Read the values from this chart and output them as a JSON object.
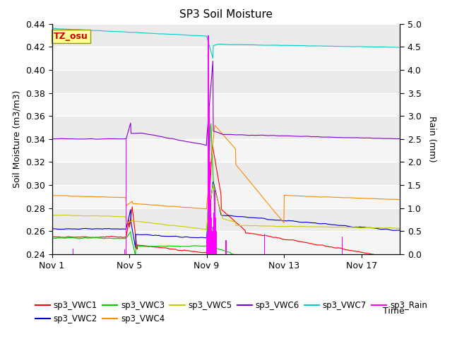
{
  "title": "SP3 Soil Moisture",
  "ylabel_left": "Soil Moisture (m3/m3)",
  "ylabel_right": "Rain (mm)",
  "xlabel": "Time",
  "ylim_left": [
    0.24,
    0.44
  ],
  "ylim_right": [
    0.0,
    5.0
  ],
  "colors": {
    "VWC1": "#ff0000",
    "VWC2": "#0000cc",
    "VWC3": "#00cc00",
    "VWC4": "#ff8800",
    "VWC5": "#cccc00",
    "VWC6": "#8800cc",
    "VWC7": "#00cccc",
    "Rain": "#ff00ff"
  },
  "bg_color": "#ebebeb",
  "bg_color2": "#f5f5f5",
  "tz_label": "TZ_osu",
  "tz_color": "#cc0000",
  "tz_bg": "#ffff99",
  "yticks": [
    0.24,
    0.26,
    0.28,
    0.3,
    0.32,
    0.34,
    0.36,
    0.38,
    0.4,
    0.42,
    0.44
  ],
  "rain_yticks": [
    0.0,
    0.5,
    1.0,
    1.5,
    2.0,
    2.5,
    3.0,
    3.5,
    4.0,
    4.5,
    5.0
  ],
  "xtick_labels": [
    "Nov 1",
    "Nov 5",
    "Nov 9",
    "Nov 13",
    "Nov 17"
  ],
  "xtick_days": [
    1,
    5,
    9,
    13,
    17
  ]
}
